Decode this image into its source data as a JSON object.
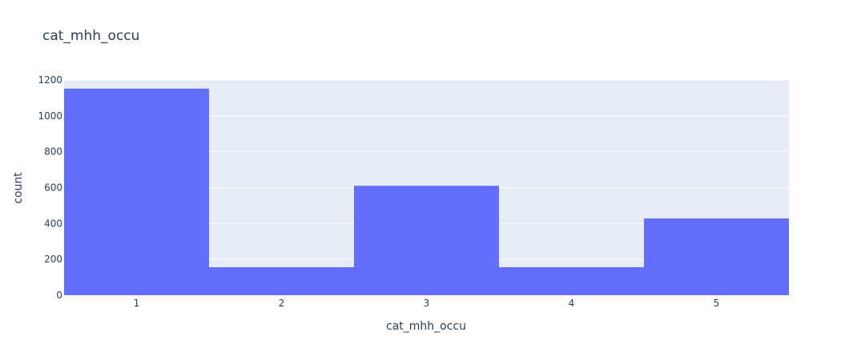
{
  "chart_data": {
    "type": "bar",
    "title": "cat_mhh_occu",
    "xlabel": "cat_mhh_occu",
    "ylabel": "count",
    "categories": [
      "1",
      "2",
      "3",
      "4",
      "5"
    ],
    "values": [
      1152,
      156,
      610,
      156,
      428
    ],
    "ylim": [
      0,
      1200
    ],
    "yticks": [
      0,
      200,
      400,
      600,
      800,
      1000,
      1200
    ],
    "grid": true,
    "legend": "none"
  },
  "colors": {
    "bar": "#636efa",
    "plot_background": "#e5ecf6",
    "gridline": "#ffffff",
    "text": "#2a3f5f"
  }
}
